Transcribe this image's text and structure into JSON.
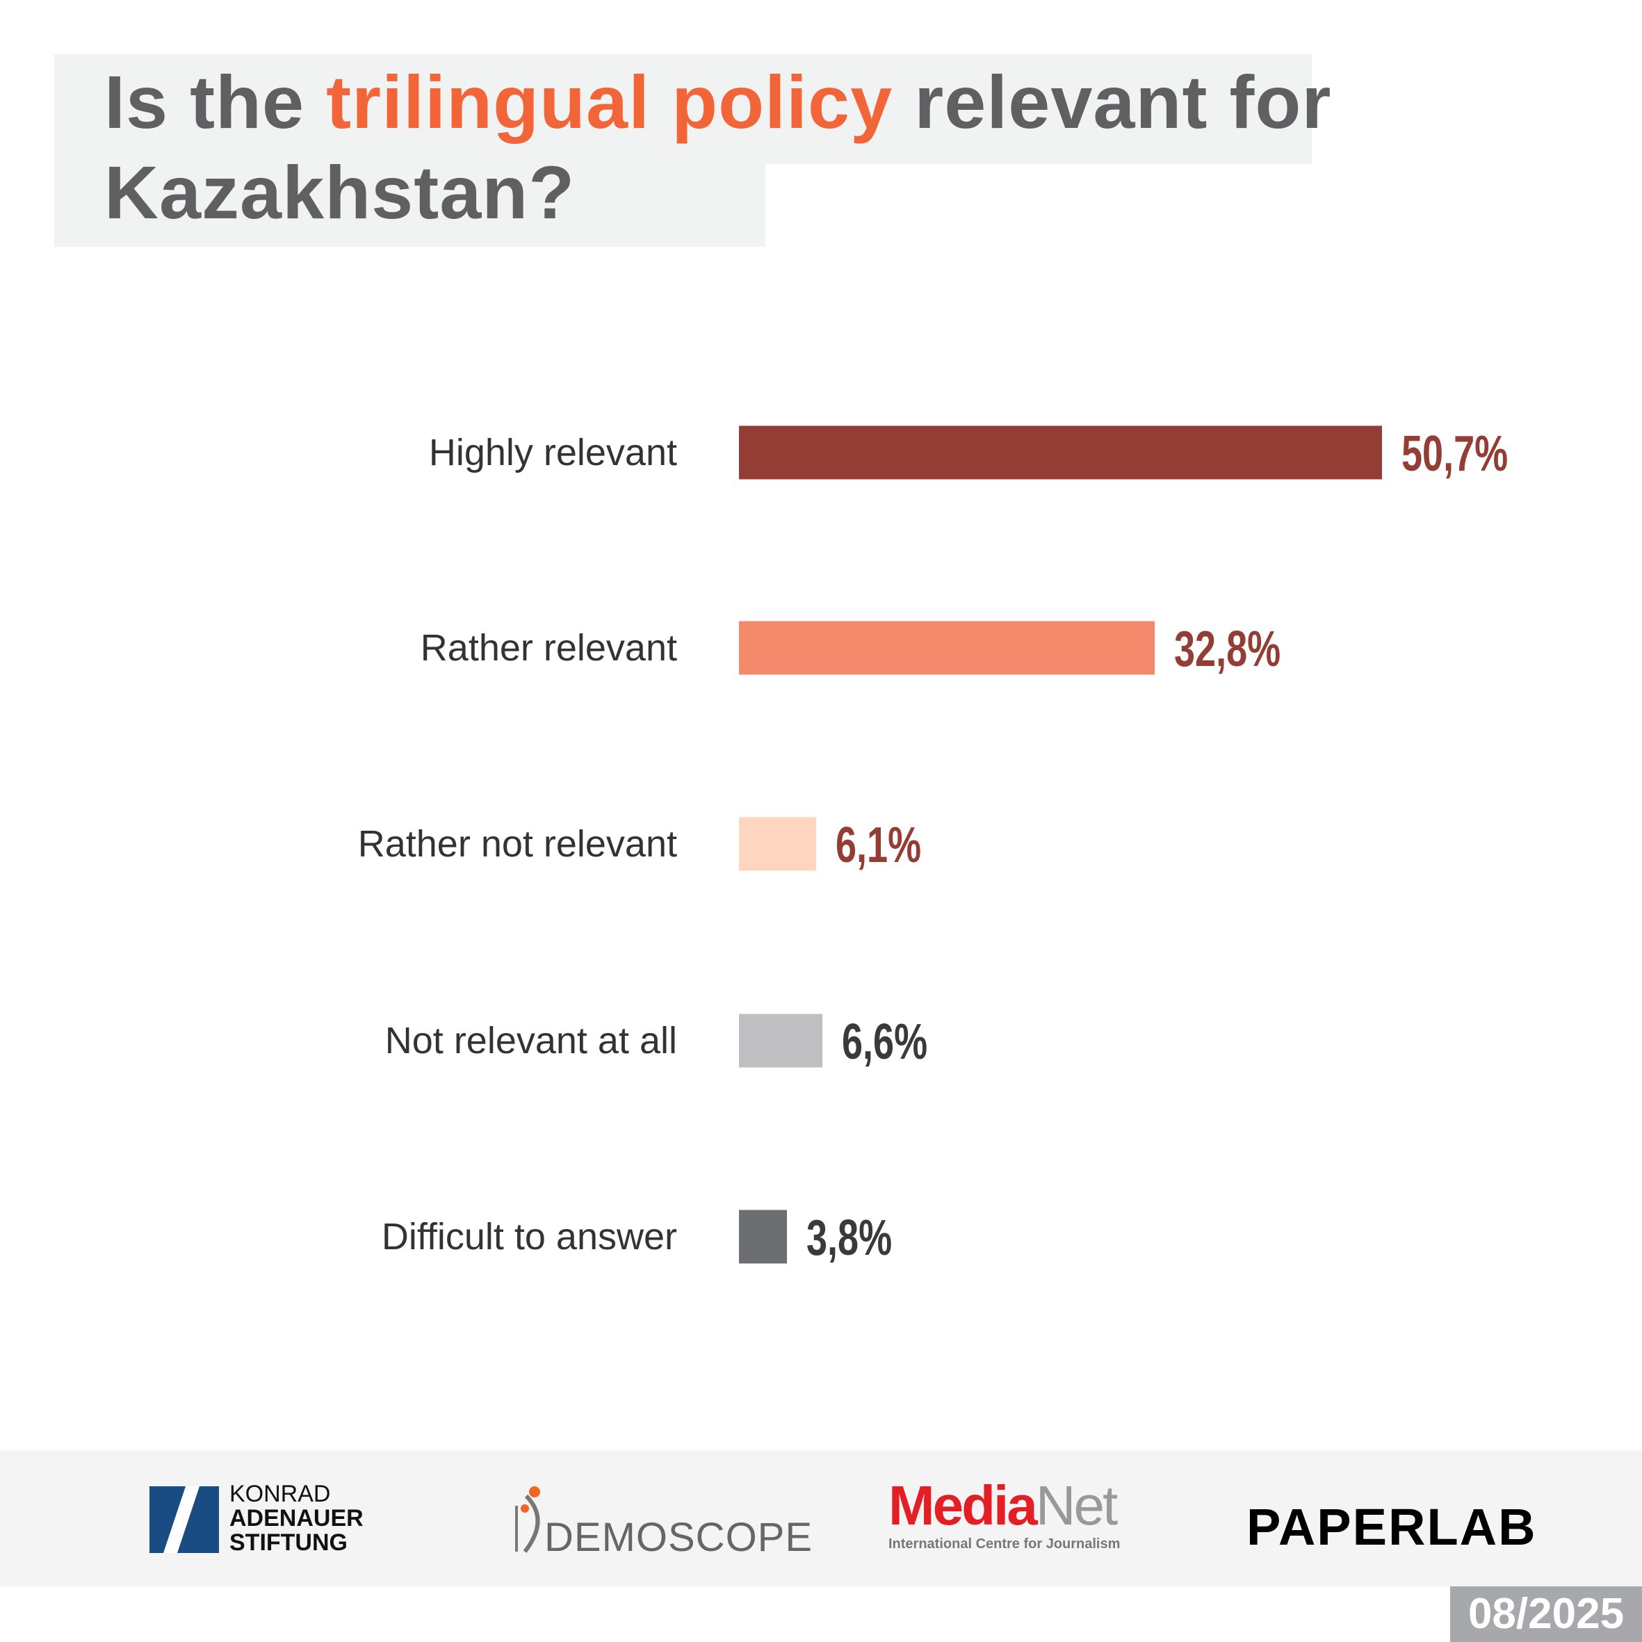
{
  "chart_data": {
    "type": "bar",
    "orientation": "horizontal",
    "title_parts": [
      "Is the ",
      "trilingual policy",
      " relevant for Kazakhstan?"
    ],
    "categories": [
      "Highly relevant",
      "Rather relevant",
      "Rather not relevant",
      "Not relevant at all",
      "Difficult to answer"
    ],
    "values": [
      50.7,
      32.8,
      6.1,
      6.6,
      3.8
    ],
    "value_labels": [
      "50,7%",
      "32,8%",
      "6,1%",
      "6,6%",
      "3,8%"
    ],
    "colors": [
      "#943d35",
      "#f48a6b",
      "#fdd5c0",
      "#bfbfc1",
      "#6d6e71"
    ],
    "label_colors": [
      "#943d35",
      "#943d35",
      "#943d35",
      "#3a3a3a",
      "#3a3a3a"
    ],
    "xlim": [
      0,
      50.7
    ],
    "grid": false
  },
  "footer": {
    "kas": [
      "KONRAD",
      "ADENAUER",
      "STIFTUNG"
    ],
    "demoscope": "DEMOSCOPE",
    "medianet_red": "Media",
    "medianet_gray": "Net",
    "medianet_sub": "International Centre for Journalism",
    "paperlab": "PAPERLAB",
    "date": "08/2025"
  }
}
